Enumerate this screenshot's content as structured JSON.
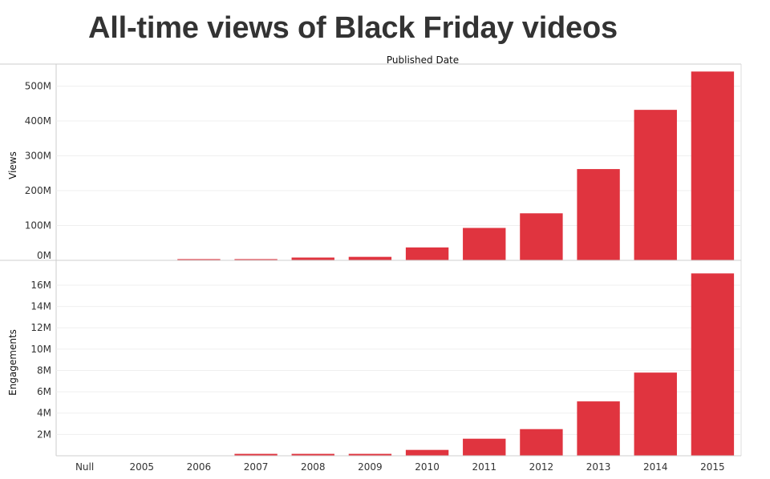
{
  "page": {
    "title": "All-time views of Black Friday videos"
  },
  "chart_data": {
    "type": "bar",
    "column_header": "Published Date",
    "categories": [
      "Null",
      "2005",
      "2006",
      "2007",
      "2008",
      "2009",
      "2010",
      "2011",
      "2012",
      "2013",
      "2014",
      "2015"
    ],
    "bar_color": "#e0343f",
    "grid": true,
    "panels": [
      {
        "ylabel": "Views",
        "ylim": [
          0,
          545
        ],
        "yticks": [
          0,
          100,
          200,
          300,
          400,
          500
        ],
        "ytick_labels": [
          "0M",
          "100M",
          "200M",
          "300M",
          "400M",
          "500M"
        ],
        "values": [
          0,
          0,
          0.8,
          0.8,
          8,
          10,
          37,
          93,
          135,
          262,
          432,
          542
        ]
      },
      {
        "ylabel": "Engagements",
        "ylim": [
          0,
          17.5
        ],
        "yticks": [
          2,
          4,
          6,
          8,
          10,
          12,
          14,
          16
        ],
        "ytick_labels": [
          "2M",
          "4M",
          "6M",
          "8M",
          "10M",
          "12M",
          "14M",
          "16M"
        ],
        "values": [
          0,
          0,
          0,
          0.18,
          0.18,
          0.18,
          0.55,
          1.6,
          2.5,
          5.1,
          7.8,
          17.1
        ]
      }
    ]
  }
}
